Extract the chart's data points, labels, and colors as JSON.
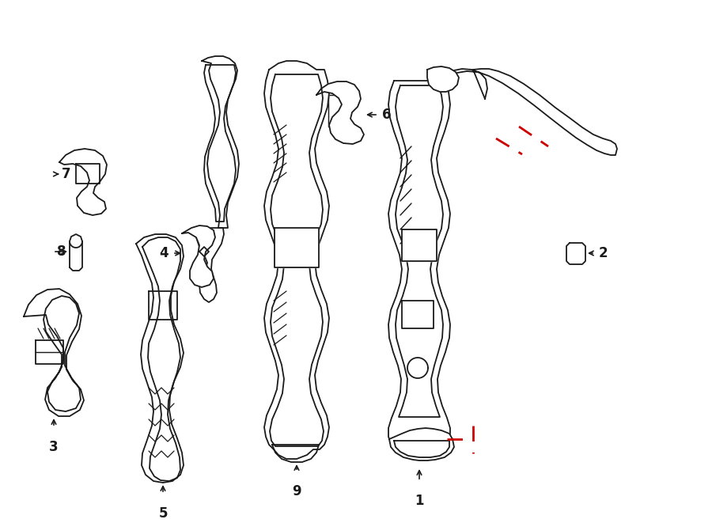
{
  "background_color": "#ffffff",
  "line_color": "#1a1a1a",
  "line_width": 1.3,
  "red_color": "#cc0000",
  "label_fontsize": 12,
  "figsize": [
    9.0,
    6.61
  ],
  "dpi": 100
}
